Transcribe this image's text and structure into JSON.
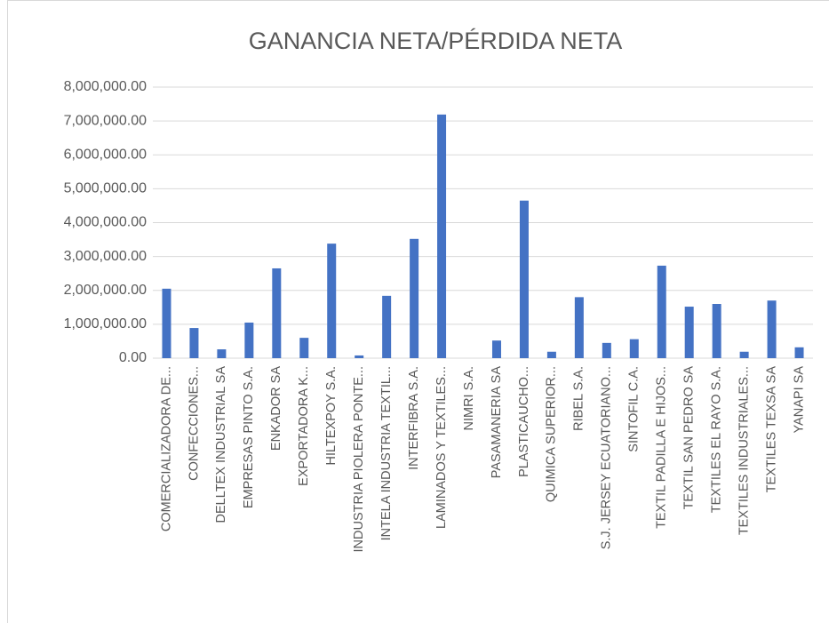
{
  "chart_data": {
    "type": "bar",
    "title": "GANANCIA NETA/PÉRDIDA NETA",
    "categories": [
      "COMERCIALIZADORA DE...",
      "CONFECCIONES...",
      "DELLTEX INDUSTRIAL SA",
      "EMPRESAS PINTO S.A.",
      "ENKADOR SA",
      "EXPORTADORA K...",
      "HILTEXPOY S.A.",
      "INDUSTRIA PIOLERA PONTE...",
      "INTELA INDUSTRIA TEXTIL...",
      "INTERFIBRA S.A.",
      "LAMINADOS Y TEXTILES...",
      "NIMRI S.A.",
      "PASAMANERIA SA",
      "PLASTICAUCHO...",
      "QUIMICA SUPERIOR...",
      "RIBEL S.A.",
      "S.J. JERSEY ECUATORIANO...",
      "SINTOFIL C.A.",
      "TEXTIL PADILLA E HIJOS...",
      "TEXTIL SAN PEDRO SA",
      "TEXTILES EL RAYO S.A.",
      "TEXTILES INDUSTRIALES...",
      "TEXTILES TEXSA SA",
      "YANAPI SA"
    ],
    "values": [
      2050000,
      890000,
      260000,
      1050000,
      2650000,
      600000,
      3380000,
      80000,
      1840000,
      3520000,
      7190000,
      0,
      520000,
      4650000,
      190000,
      1800000,
      450000,
      560000,
      2730000,
      1520000,
      1600000,
      190000,
      1700000,
      320000
    ],
    "color": "#4472c4",
    "ylim": [
      0,
      8000000
    ],
    "yticks": [
      {
        "value": 0,
        "label": "0.00"
      },
      {
        "value": 1000000,
        "label": "1,000,000.00"
      },
      {
        "value": 2000000,
        "label": "2,000,000.00"
      },
      {
        "value": 3000000,
        "label": "3,000,000.00"
      },
      {
        "value": 4000000,
        "label": "4,000,000.00"
      },
      {
        "value": 5000000,
        "label": "5,000,000.00"
      },
      {
        "value": 6000000,
        "label": "6,000,000.00"
      },
      {
        "value": 7000000,
        "label": "7,000,000.00"
      },
      {
        "value": 8000000,
        "label": "8,000,000.00"
      }
    ],
    "grid": true
  }
}
